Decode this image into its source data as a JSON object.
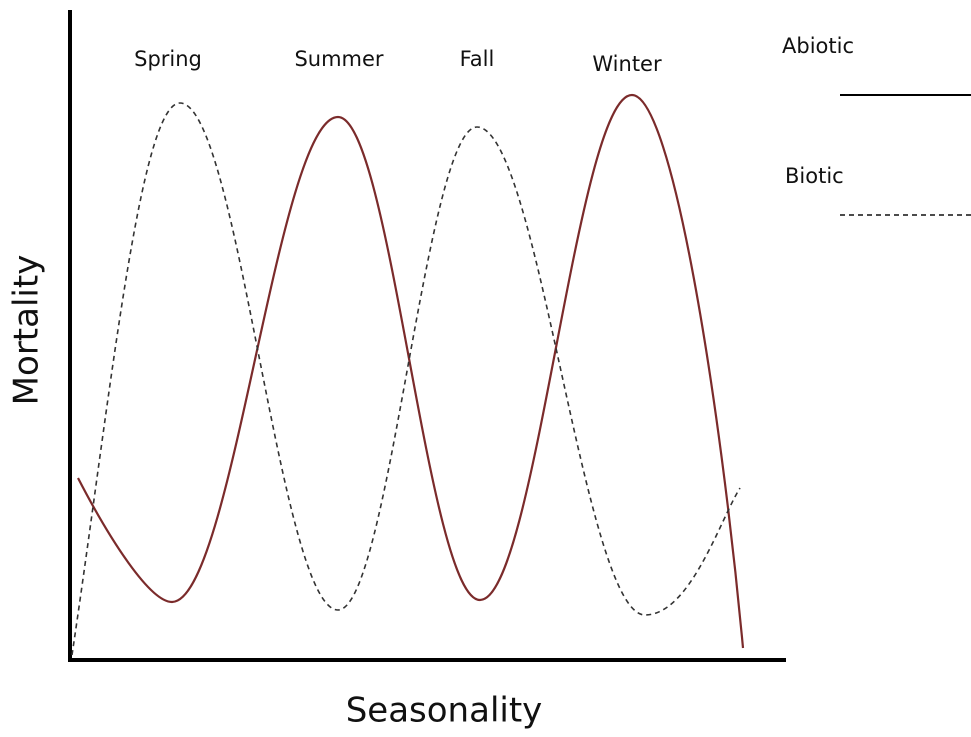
{
  "axes": {
    "x_label": "Seasonality",
    "y_label": "Mortality"
  },
  "seasons": [
    "Spring",
    "Summer",
    "Fall",
    "Winter"
  ],
  "legend": [
    "Abiotic",
    "Biotic"
  ]
}
